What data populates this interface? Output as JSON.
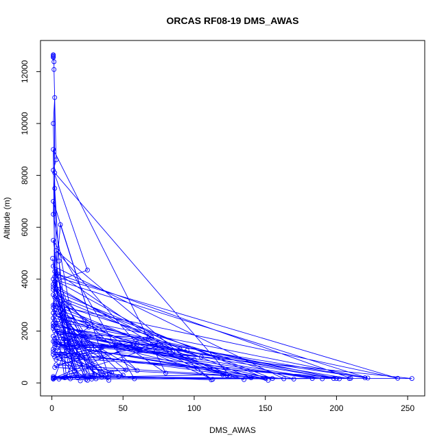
{
  "chart_data": {
    "type": "line",
    "title": "ORCAS RF08-19 DMS_AWAS",
    "xlabel": "DMS_AWAS",
    "ylabel": "Altitude (m)",
    "xlim": [
      -8,
      262
    ],
    "ylim": [
      -500,
      13200
    ],
    "xticks": [
      0,
      50,
      100,
      150,
      200,
      250
    ],
    "yticks": [
      0,
      2000,
      4000,
      6000,
      8000,
      10000,
      12000
    ],
    "grid": false,
    "legend": "none",
    "series_color": "#0000ff",
    "series": [
      {
        "values": [
          [
            1,
            12650
          ],
          [
            1,
            12620
          ],
          [
            1,
            12580
          ],
          [
            1,
            12550
          ],
          [
            1.5,
            12380
          ],
          [
            1.5,
            12080
          ],
          [
            3,
            8600
          ],
          [
            1,
            8200
          ],
          [
            25,
            4350
          ],
          [
            2,
            3900
          ],
          [
            22,
            1800
          ],
          [
            10,
            220
          ],
          [
            2,
            7500
          ],
          [
            5,
            4700
          ],
          [
            15,
            300
          ],
          [
            112,
            120
          ],
          [
            3,
            5100
          ],
          [
            60,
            1500
          ],
          [
            220,
            200
          ],
          [
            1.5,
            2200
          ],
          [
            2,
            11000
          ],
          [
            1,
            10000
          ],
          [
            4,
            3200
          ],
          [
            80,
            380
          ],
          [
            1,
            9000
          ],
          [
            2,
            4100
          ],
          [
            243,
            180
          ],
          [
            1,
            3000
          ],
          [
            6,
            6100
          ],
          [
            40,
            250
          ],
          [
            1,
            7000
          ],
          [
            3,
            3500
          ],
          [
            150,
            180
          ],
          [
            2,
            1500
          ],
          [
            90,
            1300
          ],
          [
            1,
            4000
          ],
          [
            222,
            190
          ],
          [
            2,
            2600
          ],
          [
            125,
            280
          ],
          [
            2,
            8100
          ],
          [
            1,
            6500
          ],
          [
            12,
            3100
          ],
          [
            26,
            2150
          ],
          [
            1,
            1200
          ],
          [
            163,
            160
          ],
          [
            1,
            4500
          ],
          [
            30,
            320
          ],
          [
            1,
            2500
          ],
          [
            200,
            170
          ],
          [
            3,
            1900
          ],
          [
            70,
            1750
          ],
          [
            3,
            900
          ],
          [
            58,
            160
          ],
          [
            1,
            5500
          ],
          [
            8,
            2700
          ],
          [
            35,
            220
          ],
          [
            2,
            1600
          ],
          [
            253,
            170
          ],
          [
            1,
            200
          ],
          [
            50,
            300
          ],
          [
            2,
            2800
          ],
          [
            113,
            140
          ],
          [
            1,
            3800
          ],
          [
            18,
            1400
          ],
          [
            95,
            1250
          ],
          [
            2,
            2000
          ],
          [
            155,
            170
          ],
          [
            1,
            3400
          ],
          [
            28,
            1300
          ],
          [
            2,
            1000
          ],
          [
            210,
            180
          ],
          [
            4,
            4200
          ],
          [
            15,
            1050
          ],
          [
            1,
            1800
          ],
          [
            190,
            160
          ],
          [
            2,
            1400
          ],
          [
            75,
            1500
          ],
          [
            3,
            700
          ],
          [
            123,
            300
          ],
          [
            1,
            2300
          ],
          [
            45,
            1500
          ],
          [
            2,
            600
          ],
          [
            170,
            150
          ],
          [
            6,
            3000
          ],
          [
            23,
            400
          ],
          [
            1,
            2900
          ],
          [
            135,
            130
          ],
          [
            5,
            1900
          ],
          [
            25,
            100
          ],
          [
            1,
            3600
          ],
          [
            60,
            480
          ],
          [
            2,
            2400
          ],
          [
            202,
            160
          ],
          [
            1,
            1100
          ],
          [
            85,
            1200
          ],
          [
            2,
            4300
          ],
          [
            13,
            160
          ],
          [
            0.5,
            4800
          ],
          [
            7,
            2400
          ],
          [
            22,
            1500
          ],
          [
            38,
            300
          ],
          [
            2,
            1700
          ],
          [
            183,
            170
          ],
          [
            1,
            250
          ],
          [
            31,
            160
          ],
          [
            3,
            3100
          ],
          [
            18,
            200
          ],
          [
            1,
            1300
          ],
          [
            57,
            1450
          ],
          [
            2,
            200
          ],
          [
            209,
            170
          ],
          [
            4,
            2000
          ],
          [
            100,
            900
          ],
          [
            8,
            1700
          ],
          [
            20,
            80
          ],
          [
            2,
            3300
          ],
          [
            140,
            200
          ],
          [
            5,
            1200
          ],
          [
            40,
            100
          ],
          [
            1,
            2100
          ],
          [
            152,
            100
          ],
          [
            3,
            1500
          ],
          [
            105,
            1000
          ],
          [
            1,
            2700
          ],
          [
            52,
            500
          ],
          [
            2,
            200
          ],
          [
            12,
            1700
          ],
          [
            35,
            950
          ],
          [
            1,
            3700
          ],
          [
            120,
            320
          ],
          [
            9,
            200
          ],
          [
            3,
            2300
          ],
          [
            28,
            150
          ],
          [
            2,
            3900
          ],
          [
            16,
            450
          ],
          [
            1,
            2200
          ],
          [
            198,
            170
          ],
          [
            5,
            150
          ],
          [
            42,
            400
          ],
          [
            1,
            1600
          ],
          [
            10,
            1450
          ],
          [
            30,
            600
          ],
          [
            2,
            3000
          ],
          [
            73,
            1400
          ],
          [
            1,
            150
          ],
          [
            24,
            140
          ],
          [
            4,
            1100
          ],
          [
            47,
            250
          ],
          [
            1,
            180
          ]
        ]
      }
    ]
  }
}
